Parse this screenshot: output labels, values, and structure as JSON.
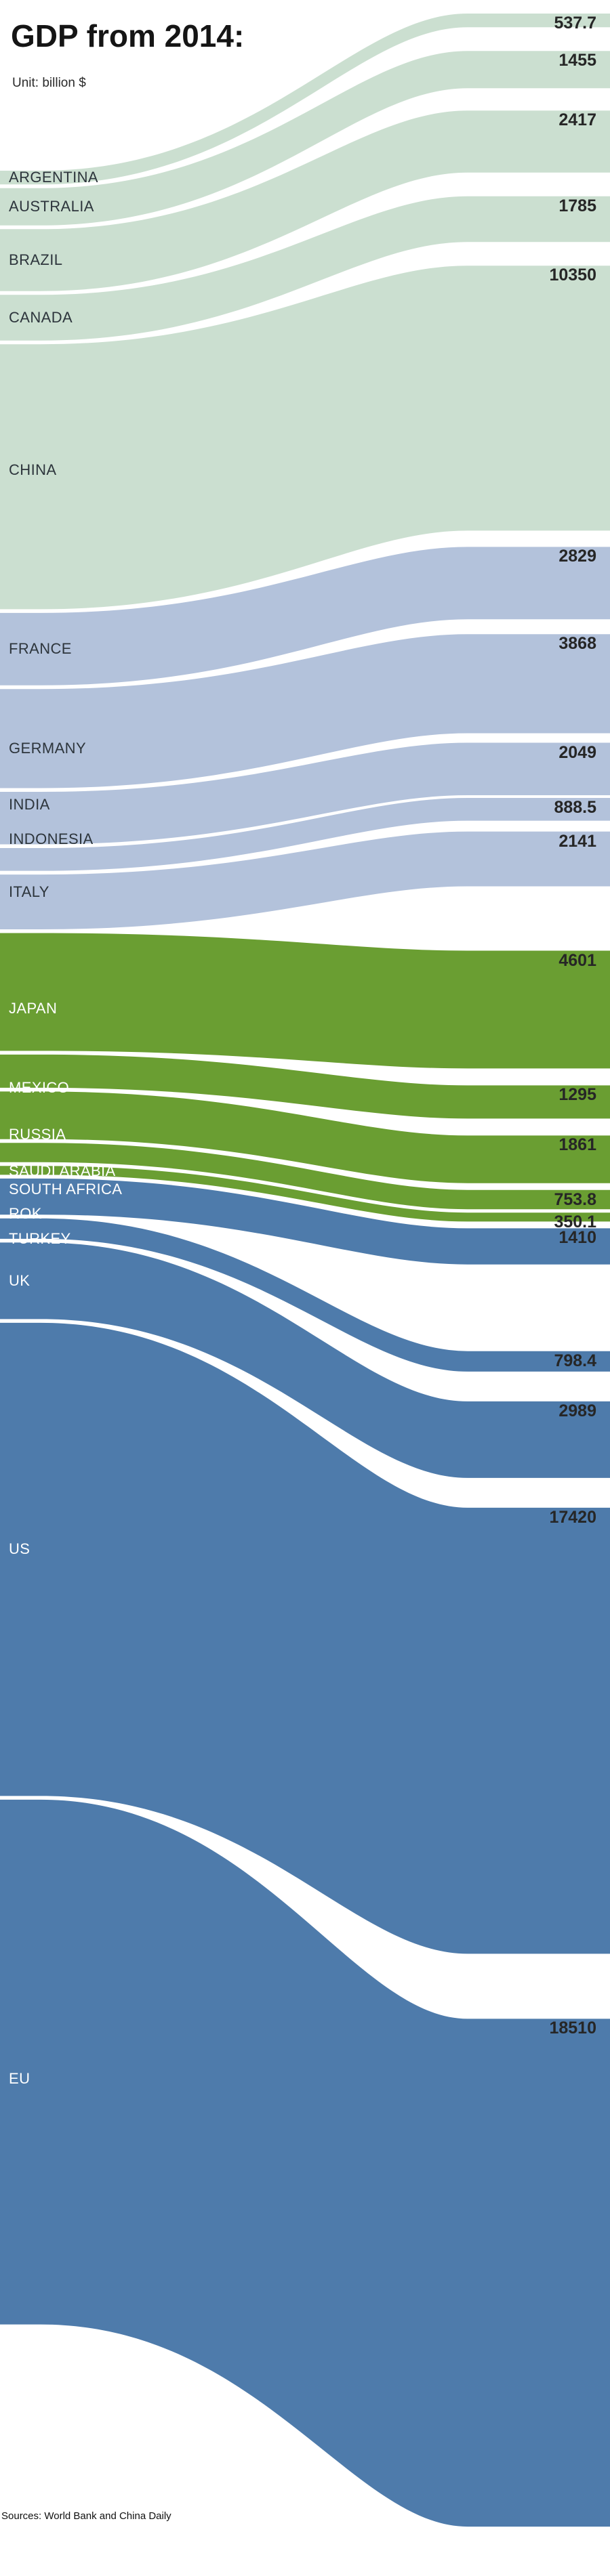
{
  "header": {
    "title": "GDP from 2014:",
    "subtitle": "Unit: billion $"
  },
  "footer": {
    "sources": "Sources: World Bank and China Daily"
  },
  "chart_data": {
    "type": "area",
    "variant": "ribbon-flow",
    "title": "GDP from 2014:",
    "unit": "billion $",
    "source": "Sources: World Bank and China Daily",
    "legend": "none",
    "grid": "off",
    "categories": [
      "ARGENTINA",
      "AUSTRALIA",
      "BRAZIL",
      "CANADA",
      "CHINA",
      "FRANCE",
      "GERMANY",
      "INDIA",
      "INDONESIA",
      "ITALY",
      "JAPAN",
      "MEXICO",
      "RUSSIA",
      "SAUDI ARABIA",
      "SOUTH AFRICA",
      "ROK",
      "TURKEY",
      "UK",
      "US",
      "EU"
    ],
    "values": [
      537.7,
      1455,
      2417,
      1785,
      10350,
      2829,
      3868,
      2049,
      888.5,
      2141,
      4601,
      1295,
      1861,
      753.8,
      350.1,
      1410,
      798.4,
      2989,
      17420,
      18510
    ],
    "countries": [
      {
        "name": "ARGENTINA",
        "value": 537.7,
        "display": "537.7",
        "group": "pale_green"
      },
      {
        "name": "AUSTRALIA",
        "value": 1455,
        "display": "1455",
        "group": "pale_green"
      },
      {
        "name": "BRAZIL",
        "value": 2417,
        "display": "2417",
        "group": "pale_green"
      },
      {
        "name": "CANADA",
        "value": 1785,
        "display": "1785",
        "group": "pale_green"
      },
      {
        "name": "CHINA",
        "value": 10350,
        "display": "10350",
        "group": "pale_green"
      },
      {
        "name": "FRANCE",
        "value": 2829,
        "display": "2829",
        "group": "lavender"
      },
      {
        "name": "GERMANY",
        "value": 3868,
        "display": "3868",
        "group": "lavender"
      },
      {
        "name": "INDIA",
        "value": 2049,
        "display": "2049",
        "group": "lavender"
      },
      {
        "name": "INDONESIA",
        "value": 888.5,
        "display": "888.5",
        "group": "lavender"
      },
      {
        "name": "ITALY",
        "value": 2141,
        "display": "2141",
        "group": "lavender"
      },
      {
        "name": "JAPAN",
        "value": 4601,
        "display": "4601",
        "group": "olive_green"
      },
      {
        "name": "MEXICO",
        "value": 1295,
        "display": "1295",
        "group": "olive_green"
      },
      {
        "name": "RUSSIA",
        "value": 1861,
        "display": "1861",
        "group": "olive_green"
      },
      {
        "name": "SAUDI ARABIA",
        "value": 753.8,
        "display": "753.8",
        "group": "olive_green"
      },
      {
        "name": "SOUTH AFRICA",
        "value": 350.1,
        "display": "350.1",
        "group": "olive_green"
      },
      {
        "name": "ROK",
        "value": 1410,
        "display": "1410",
        "group": "steel_blue"
      },
      {
        "name": "TURKEY",
        "value": 798.4,
        "display": "798.4",
        "group": "steel_blue"
      },
      {
        "name": "UK",
        "value": 2989,
        "display": "2989",
        "group": "steel_blue"
      },
      {
        "name": "US",
        "value": 17420,
        "display": "17420",
        "group": "steel_blue"
      },
      {
        "name": "EU",
        "value": 18510,
        "display": "18510",
        "group": "steel_blue"
      }
    ],
    "palette": {
      "pale_green": "#cbdfd0",
      "lavender": "#b3c2db",
      "olive_green": "#6a9e32",
      "steel_blue": "#4e7bab"
    },
    "country_label_colors": {
      "pale_green": "#2d353c",
      "lavender": "#2d353c",
      "olive_green": "#ffffff",
      "steel_blue": "#ffffff"
    },
    "value_label_color": "#262626",
    "background_color": "#ffffff"
  }
}
